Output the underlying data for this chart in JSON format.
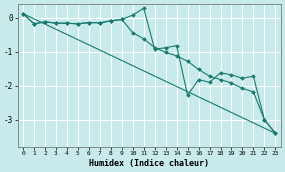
{
  "xlabel": "Humidex (Indice chaleur)",
  "bg_color": "#c8eaea",
  "grid_color": "#ffffff",
  "line_color": "#1a7a6e",
  "x_ticks": [
    0,
    1,
    2,
    3,
    4,
    5,
    6,
    7,
    8,
    9,
    10,
    11,
    12,
    13,
    14,
    15,
    16,
    17,
    18,
    19,
    20,
    21,
    22,
    23
  ],
  "y_ticks": [
    0,
    -1,
    -2,
    -3
  ],
  "ylim": [
    -3.8,
    0.4
  ],
  "xlim": [
    -0.5,
    23.5
  ],
  "series1_x": [
    0,
    1,
    2,
    3,
    4,
    5,
    6,
    7,
    8,
    9,
    10,
    11,
    12,
    13,
    14,
    15,
    16,
    17,
    18,
    19,
    20,
    21,
    22,
    23
  ],
  "series1_y": [
    0.12,
    -0.18,
    -0.12,
    -0.16,
    -0.16,
    -0.18,
    -0.14,
    -0.15,
    -0.09,
    -0.05,
    0.08,
    0.28,
    -0.93,
    -0.88,
    -0.82,
    -2.28,
    -1.82,
    -1.9,
    -1.62,
    -1.68,
    -1.78,
    -1.72,
    -3.0,
    -3.4
  ],
  "series2_x": [
    0,
    1,
    2,
    3,
    4,
    5,
    6,
    7,
    8,
    9,
    10,
    11,
    12,
    13,
    14,
    15,
    16,
    17,
    18,
    19,
    20,
    21,
    22,
    23
  ],
  "series2_y": [
    0.12,
    -0.18,
    -0.12,
    -0.16,
    -0.16,
    -0.18,
    -0.14,
    -0.15,
    -0.09,
    -0.05,
    -0.44,
    -0.62,
    -0.88,
    -1.02,
    -1.12,
    -1.28,
    -1.52,
    -1.72,
    -1.82,
    -1.92,
    -2.08,
    -2.18,
    -3.0,
    -3.4
  ],
  "series3_x": [
    0,
    23
  ],
  "series3_y": [
    0.12,
    -3.4
  ]
}
